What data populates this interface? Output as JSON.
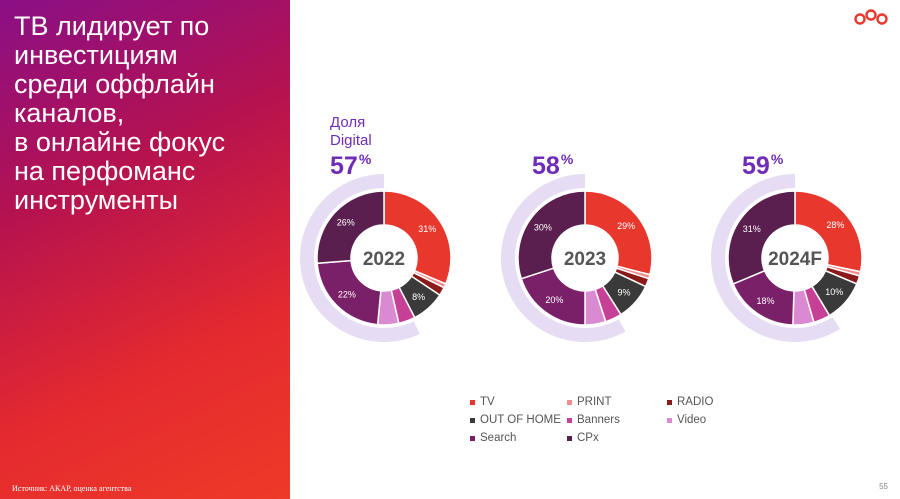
{
  "headline": [
    "ТВ лидирует по",
    "инвестициям",
    "среди оффлайн",
    "каналов,",
    "в онлайне фокус",
    "на перфоманс",
    "инструменты"
  ],
  "digital_caption": [
    "Доля",
    "Digital"
  ],
  "source": "Источник: АКАР, оценка агентства",
  "page_number": "55",
  "colors": {
    "TV": "#e8382e",
    "PRINT": "#f28c8c",
    "RADIO": "#8b1a1a",
    "OUT OF HOME": "#3a3a3a",
    "Banners": "#c64095",
    "Video": "#d98ad0",
    "Search": "#7a2068",
    "CPx": "#5a1e4f",
    "outer_ring": "#e6dcf3",
    "accent": "#6f2db7"
  },
  "legend": [
    {
      "label": "TV",
      "color": "#e8382e"
    },
    {
      "label": "PRINT",
      "color": "#f28c8c"
    },
    {
      "label": "RADIO",
      "color": "#8b1a1a"
    },
    {
      "label": "OUT OF HOME",
      "color": "#3a3a3a"
    },
    {
      "label": "Banners",
      "color": "#c64095"
    },
    {
      "label": "Video",
      "color": "#d98ad0"
    },
    {
      "label": "Search",
      "color": "#7a2068"
    },
    {
      "label": "CPx",
      "color": "#5a1e4f"
    }
  ],
  "chart_data": [
    {
      "type": "pie",
      "center_label": "2022",
      "digital_share_label": "57",
      "digital_share_unit": "%",
      "digital_share": 57,
      "categories": [
        "TV",
        "PRINT",
        "RADIO",
        "OUT OF HOME",
        "Banners",
        "Video",
        "Search",
        "CPx"
      ],
      "values": [
        31,
        1,
        2,
        8,
        4,
        5,
        22,
        26
      ],
      "labels": [
        "31%",
        "",
        "",
        "8%",
        "",
        "",
        "22%",
        "26%"
      ]
    },
    {
      "type": "pie",
      "center_label": "2023",
      "digital_share_label": "58",
      "digital_share_unit": "%",
      "digital_share": 58,
      "categories": [
        "TV",
        "PRINT",
        "RADIO",
        "OUT OF HOME",
        "Banners",
        "Video",
        "Search",
        "CPx"
      ],
      "values": [
        29,
        1,
        2,
        9,
        4,
        5,
        20,
        30
      ],
      "labels": [
        "29%",
        "",
        "",
        "9%",
        "",
        "",
        "20%",
        "30%"
      ]
    },
    {
      "type": "pie",
      "center_label": "2024F",
      "digital_share_label": "59",
      "digital_share_unit": "%",
      "digital_share": 59,
      "categories": [
        "TV",
        "PRINT",
        "RADIO",
        "OUT OF HOME",
        "Banners",
        "Video",
        "Search",
        "CPx"
      ],
      "values": [
        28,
        1,
        2,
        10,
        4,
        5,
        18,
        31
      ],
      "labels": [
        "28%",
        "",
        "",
        "10%",
        "",
        "",
        "18%",
        "31%"
      ]
    }
  ]
}
